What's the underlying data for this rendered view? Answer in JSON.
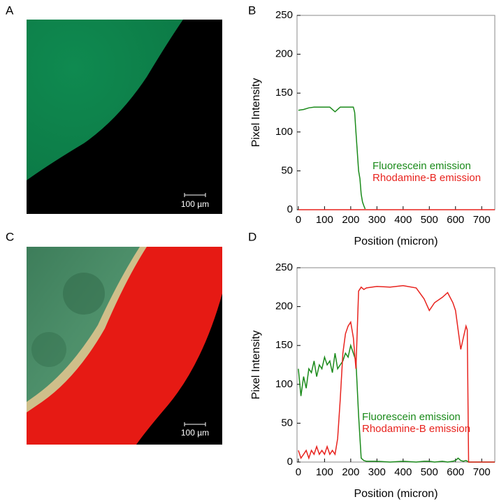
{
  "panels": [
    {
      "label": "A",
      "scale_bar": "100 µm"
    },
    {
      "label": "C",
      "scale_bar": "100 µm"
    }
  ],
  "chart_data": [
    {
      "type": "line",
      "label": "B",
      "x": [
        0,
        20,
        40,
        60,
        80,
        100,
        120,
        130,
        140,
        150,
        160,
        180,
        200,
        210,
        215,
        220,
        225,
        230,
        235,
        240,
        245,
        250,
        255,
        260,
        300,
        400,
        500,
        600,
        700,
        750
      ],
      "series": [
        {
          "name": "Fluorescein emission",
          "color": "#1a8a1a",
          "values": [
            128,
            129,
            131,
            132,
            132,
            132,
            132,
            129,
            126,
            129,
            132,
            132,
            132,
            132,
            125,
            100,
            75,
            50,
            40,
            20,
            10,
            5,
            1,
            null,
            null,
            null,
            null,
            null,
            null,
            null
          ]
        },
        {
          "name": "Rhodamine-B emission",
          "color": "#e8231e",
          "values": [
            0,
            0,
            0,
            0,
            0,
            0,
            0,
            0,
            0,
            0,
            0,
            0,
            0,
            0,
            0,
            0,
            0,
            0,
            0,
            0,
            0,
            0,
            0,
            0,
            0,
            0,
            0,
            0,
            0,
            0
          ]
        }
      ],
      "xlim": [
        -5,
        750
      ],
      "ylim": [
        0,
        250
      ],
      "xticks": [
        0,
        100,
        200,
        300,
        400,
        500,
        600,
        700
      ],
      "yticks": [
        0,
        50,
        100,
        150,
        200,
        250
      ],
      "xlabel": "Position (micron)",
      "ylabel": "Pixel Intensity"
    },
    {
      "type": "line",
      "label": "D",
      "x": [
        0,
        10,
        20,
        30,
        40,
        50,
        60,
        70,
        80,
        90,
        100,
        110,
        120,
        130,
        140,
        150,
        160,
        170,
        180,
        190,
        200,
        210,
        220,
        230,
        240,
        250,
        260,
        300,
        350,
        400,
        450,
        480,
        500,
        520,
        550,
        570,
        590,
        600,
        610,
        620,
        630,
        640,
        645,
        650,
        660,
        700,
        750
      ],
      "series": [
        {
          "name": "Fluorescein emission",
          "color": "#1a8a1a",
          "values": [
            120,
            85,
            110,
            95,
            120,
            115,
            130,
            110,
            125,
            120,
            135,
            125,
            130,
            115,
            140,
            120,
            125,
            130,
            140,
            135,
            150,
            140,
            130,
            60,
            5,
            2,
            1,
            1,
            0,
            1,
            0,
            1,
            1,
            0,
            1,
            0,
            1,
            2,
            5,
            2,
            1,
            2,
            1,
            0,
            0,
            0,
            0
          ]
        },
        {
          "name": "Rhodamine-B emission",
          "color": "#e8231e",
          "values": [
            15,
            5,
            10,
            15,
            5,
            15,
            10,
            20,
            10,
            15,
            10,
            20,
            10,
            15,
            10,
            30,
            80,
            140,
            165,
            175,
            180,
            160,
            120,
            220,
            225,
            222,
            224,
            226,
            225,
            227,
            224,
            210,
            195,
            205,
            212,
            218,
            205,
            195,
            170,
            145,
            160,
            175,
            170,
            0,
            0,
            0,
            0
          ]
        }
      ],
      "xlim": [
        -5,
        750
      ],
      "ylim": [
        0,
        250
      ],
      "xticks": [
        0,
        100,
        200,
        300,
        400,
        500,
        600,
        700
      ],
      "yticks": [
        0,
        50,
        100,
        150,
        200,
        250
      ],
      "xlabel": "Position (micron)",
      "ylabel": "Pixel Intensity"
    }
  ]
}
